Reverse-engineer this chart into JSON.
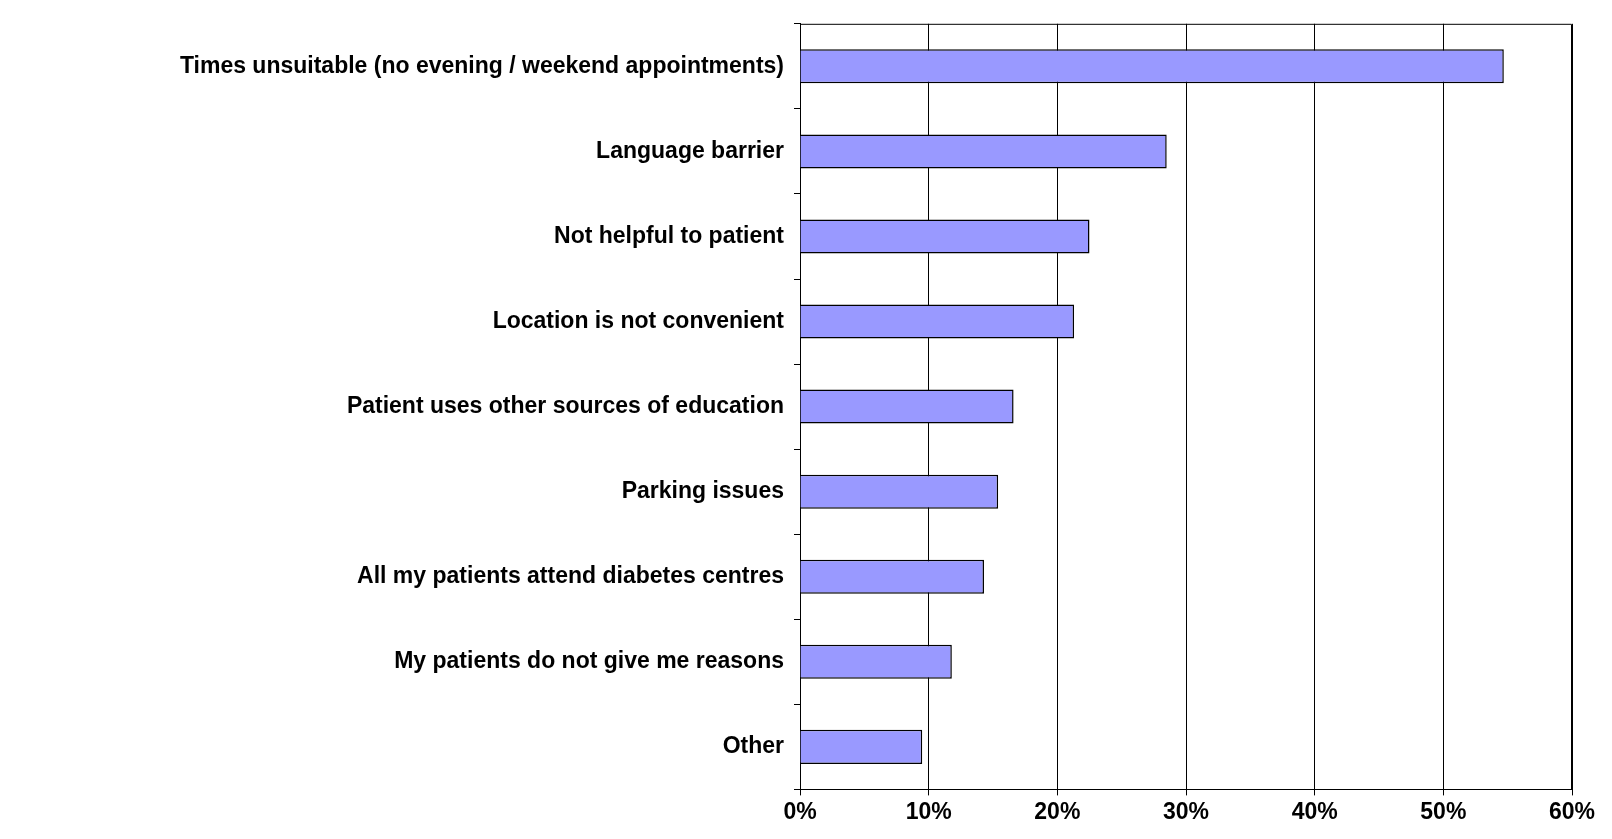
{
  "chart_data": {
    "type": "bar",
    "orientation": "horizontal",
    "categories": [
      "Times unsuitable (no evening / weekend appointments)",
      "Language barrier",
      "Not helpful to patient",
      "Location is not convenient",
      "Patient uses other sources of education",
      "Parking issues",
      "All my patients attend diabetes centres",
      "My patients do not give me reasons",
      "Other"
    ],
    "values": [
      54.7,
      28.5,
      22.5,
      21.3,
      16.6,
      15.4,
      14.3,
      11.8,
      9.5
    ],
    "color": "#9999ff",
    "xlim": [
      0,
      60
    ],
    "xticks": [
      {
        "value": 0,
        "label": "0%"
      },
      {
        "value": 10,
        "label": "10%"
      },
      {
        "value": 20,
        "label": "20%"
      },
      {
        "value": 30,
        "label": "30%"
      },
      {
        "value": 40,
        "label": "40%"
      },
      {
        "value": 50,
        "label": "50%"
      },
      {
        "value": 60,
        "label": "60%"
      }
    ],
    "grid": "x",
    "legend": false
  }
}
